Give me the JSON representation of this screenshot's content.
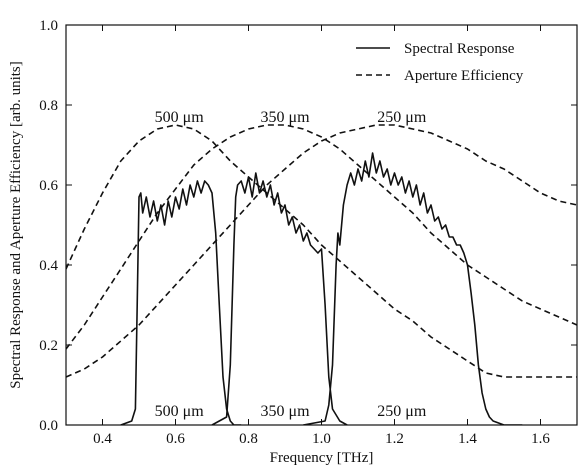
{
  "chart_data": {
    "type": "line",
    "title": "",
    "xlabel": "Frequency [THz]",
    "ylabel": "Spectral Response and Aperture Efficiency [arb. units]",
    "xlim": [
      0.3,
      1.7
    ],
    "ylim": [
      0.0,
      1.0
    ],
    "x_ticks": [
      0.4,
      0.6,
      0.8,
      1.0,
      1.2,
      1.4,
      1.6
    ],
    "x_tick_labels": [
      "0.4",
      "0.6",
      "0.8",
      "1.0",
      "1.2",
      "1.4",
      "1.6"
    ],
    "y_ticks": [
      0.0,
      0.2,
      0.4,
      0.6,
      0.8,
      1.0
    ],
    "y_tick_labels": [
      "0.0",
      "0.2",
      "0.4",
      "0.6",
      "0.8",
      "1.0"
    ],
    "grid": false,
    "legend": {
      "placement": "top-right",
      "entries": [
        {
          "label": "Spectral Response",
          "style": "solid"
        },
        {
          "label": "Aperture Efficiency",
          "style": "dashed"
        }
      ]
    },
    "annotations": [
      {
        "text": "500 μm",
        "x": 0.61,
        "y": 0.77
      },
      {
        "text": "350 μm",
        "x": 0.9,
        "y": 0.77
      },
      {
        "text": "250 μm",
        "x": 1.22,
        "y": 0.77
      },
      {
        "text": "500 μm",
        "x": 0.61,
        "y": 0.035
      },
      {
        "text": "350 μm",
        "x": 0.9,
        "y": 0.035
      },
      {
        "text": "250 μm",
        "x": 1.22,
        "y": 0.035
      }
    ],
    "series": [
      {
        "style": "solid",
        "x": [
          0.45,
          0.48,
          0.49,
          0.495,
          0.5,
          0.505,
          0.51,
          0.52,
          0.53,
          0.54,
          0.55,
          0.56,
          0.57,
          0.58,
          0.59,
          0.6,
          0.61,
          0.62,
          0.63,
          0.64,
          0.65,
          0.66,
          0.67,
          0.68,
          0.69,
          0.7,
          0.71,
          0.72,
          0.73,
          0.74,
          0.75,
          0.76,
          0.78
        ],
        "y": [
          0.0,
          0.01,
          0.04,
          0.3,
          0.57,
          0.58,
          0.53,
          0.57,
          0.52,
          0.56,
          0.51,
          0.55,
          0.5,
          0.56,
          0.52,
          0.57,
          0.54,
          0.59,
          0.55,
          0.6,
          0.57,
          0.61,
          0.58,
          0.61,
          0.6,
          0.58,
          0.48,
          0.3,
          0.12,
          0.04,
          0.01,
          0.0,
          0.0
        ]
      },
      {
        "style": "solid",
        "x": [
          0.7,
          0.74,
          0.75,
          0.76,
          0.765,
          0.77,
          0.78,
          0.79,
          0.8,
          0.81,
          0.82,
          0.83,
          0.84,
          0.85,
          0.86,
          0.87,
          0.88,
          0.89,
          0.9,
          0.91,
          0.92,
          0.93,
          0.94,
          0.95,
          0.96,
          0.97,
          0.98,
          0.99,
          1.0,
          1.01,
          1.02,
          1.03,
          1.05,
          1.07
        ],
        "y": [
          0.0,
          0.02,
          0.15,
          0.45,
          0.57,
          0.6,
          0.61,
          0.58,
          0.62,
          0.57,
          0.63,
          0.58,
          0.61,
          0.57,
          0.6,
          0.55,
          0.58,
          0.53,
          0.55,
          0.5,
          0.52,
          0.48,
          0.5,
          0.46,
          0.48,
          0.45,
          0.44,
          0.43,
          0.44,
          0.3,
          0.12,
          0.04,
          0.01,
          0.0
        ]
      },
      {
        "style": "solid",
        "x": [
          0.95,
          1.01,
          1.02,
          1.03,
          1.04,
          1.045,
          1.05,
          1.06,
          1.07,
          1.08,
          1.09,
          1.1,
          1.11,
          1.12,
          1.13,
          1.14,
          1.15,
          1.16,
          1.17,
          1.18,
          1.19,
          1.2,
          1.21,
          1.22,
          1.23,
          1.24,
          1.25,
          1.26,
          1.27,
          1.28,
          1.29,
          1.3,
          1.31,
          1.32,
          1.33,
          1.34,
          1.35,
          1.36,
          1.37,
          1.38,
          1.39,
          1.4,
          1.41,
          1.42,
          1.43,
          1.44,
          1.45,
          1.46,
          1.47,
          1.5,
          1.55
        ],
        "y": [
          0.0,
          0.01,
          0.05,
          0.15,
          0.4,
          0.48,
          0.45,
          0.55,
          0.6,
          0.63,
          0.6,
          0.64,
          0.61,
          0.66,
          0.62,
          0.68,
          0.63,
          0.66,
          0.62,
          0.64,
          0.6,
          0.63,
          0.6,
          0.62,
          0.58,
          0.61,
          0.57,
          0.6,
          0.55,
          0.58,
          0.53,
          0.55,
          0.51,
          0.52,
          0.49,
          0.5,
          0.47,
          0.47,
          0.45,
          0.45,
          0.43,
          0.4,
          0.33,
          0.25,
          0.15,
          0.08,
          0.04,
          0.02,
          0.01,
          0.0,
          0.0
        ]
      },
      {
        "style": "dashed",
        "x": [
          0.3,
          0.35,
          0.4,
          0.45,
          0.5,
          0.55,
          0.6,
          0.65,
          0.7,
          0.75,
          0.8,
          0.85,
          0.9,
          0.95,
          1.0,
          1.05,
          1.1,
          1.15,
          1.2,
          1.25,
          1.3,
          1.35,
          1.4,
          1.45,
          1.5,
          1.55,
          1.6,
          1.65,
          1.7
        ],
        "y": [
          0.39,
          0.49,
          0.58,
          0.66,
          0.71,
          0.74,
          0.75,
          0.74,
          0.71,
          0.66,
          0.62,
          0.58,
          0.54,
          0.5,
          0.45,
          0.41,
          0.37,
          0.33,
          0.29,
          0.26,
          0.22,
          0.19,
          0.16,
          0.13,
          0.12,
          0.12,
          0.12,
          0.12,
          0.12
        ]
      },
      {
        "style": "dashed",
        "x": [
          0.3,
          0.35,
          0.4,
          0.45,
          0.5,
          0.55,
          0.6,
          0.65,
          0.7,
          0.75,
          0.8,
          0.85,
          0.9,
          0.95,
          1.0,
          1.05,
          1.1,
          1.15,
          1.2,
          1.25,
          1.3,
          1.35,
          1.4,
          1.45,
          1.5,
          1.55,
          1.6,
          1.65,
          1.7
        ],
        "y": [
          0.19,
          0.25,
          0.32,
          0.39,
          0.46,
          0.53,
          0.59,
          0.65,
          0.69,
          0.72,
          0.74,
          0.75,
          0.75,
          0.74,
          0.72,
          0.69,
          0.65,
          0.61,
          0.57,
          0.53,
          0.48,
          0.44,
          0.4,
          0.37,
          0.34,
          0.31,
          0.29,
          0.27,
          0.25
        ]
      },
      {
        "style": "dashed",
        "x": [
          0.3,
          0.35,
          0.4,
          0.45,
          0.5,
          0.55,
          0.6,
          0.65,
          0.7,
          0.75,
          0.8,
          0.85,
          0.9,
          0.95,
          1.0,
          1.05,
          1.1,
          1.15,
          1.2,
          1.25,
          1.3,
          1.35,
          1.4,
          1.45,
          1.5,
          1.55,
          1.6,
          1.65,
          1.7
        ],
        "y": [
          0.12,
          0.14,
          0.17,
          0.21,
          0.25,
          0.3,
          0.35,
          0.4,
          0.45,
          0.5,
          0.55,
          0.6,
          0.64,
          0.68,
          0.71,
          0.73,
          0.74,
          0.75,
          0.75,
          0.74,
          0.73,
          0.71,
          0.69,
          0.66,
          0.64,
          0.61,
          0.58,
          0.56,
          0.55
        ]
      }
    ]
  }
}
